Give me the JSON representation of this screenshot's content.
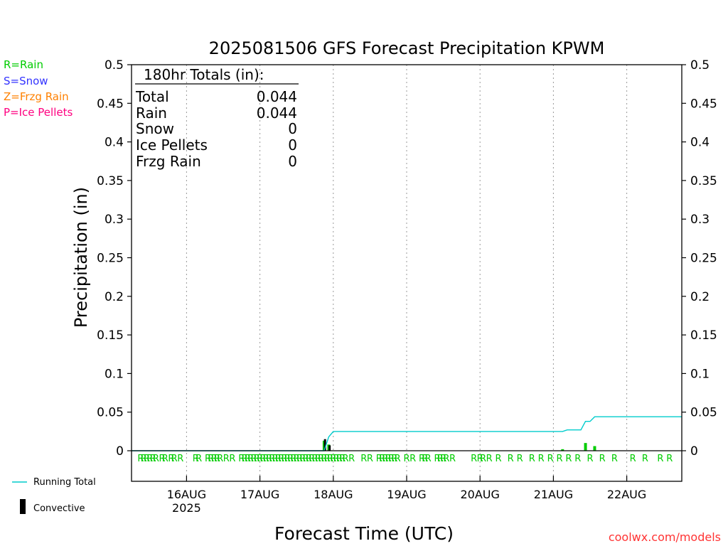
{
  "chart_data": {
    "type": "bar",
    "title": "2025081506 GFS Forecast Precipitation KPWM",
    "xlabel": "Forecast Time (UTC)",
    "ylabel": "Precipitation (in)",
    "ylim": [
      0,
      0.5
    ],
    "xlim_hours": [
      0,
      180
    ],
    "yticks": [
      "0",
      "0.05",
      "0.1",
      "0.15",
      "0.2",
      "0.25",
      "0.3",
      "0.35",
      "0.4",
      "0.45",
      "0.5"
    ],
    "xticks": [
      {
        "hour": 18,
        "label": "16AUG",
        "sublabel": "2025"
      },
      {
        "hour": 42,
        "label": "17AUG",
        "sublabel": ""
      },
      {
        "hour": 66,
        "label": "18AUG",
        "sublabel": ""
      },
      {
        "hour": 90,
        "label": "19AUG",
        "sublabel": ""
      },
      {
        "hour": 114,
        "label": "20AUG",
        "sublabel": ""
      },
      {
        "hour": 138,
        "label": "21AUG",
        "sublabel": ""
      },
      {
        "hour": 162,
        "label": "22AUG",
        "sublabel": ""
      }
    ],
    "grid": true,
    "legend": {
      "types": [
        {
          "text": "R=Rain",
          "color": "#00cc00"
        },
        {
          "text": "S=Snow",
          "color": "#3333ff"
        },
        {
          "text": "Z=Frzg Rain",
          "color": "#ff8000"
        },
        {
          "text": "P=Ice Pellets",
          "color": "#ff0080"
        }
      ],
      "running_total_label": "Running Total",
      "convective_label": "Convective"
    },
    "totals_box": {
      "heading": "180hr Totals (in):",
      "rows": [
        {
          "label": "Total",
          "value": "0.044"
        },
        {
          "label": "Rain",
          "value": "0.044"
        },
        {
          "label": "Snow",
          "value": "0"
        },
        {
          "label": "Ice Pellets",
          "value": "0"
        },
        {
          "label": "Frzg Rain",
          "value": "0"
        }
      ]
    },
    "series": [
      {
        "name": "Running Total",
        "color": "#00cccc",
        "points": [
          [
            0,
            0
          ],
          [
            63,
            0
          ],
          [
            64.5,
            0.018
          ],
          [
            66,
            0.025
          ],
          [
            141,
            0.025
          ],
          [
            142.5,
            0.027
          ],
          [
            147,
            0.027
          ],
          [
            148.5,
            0.038
          ],
          [
            150,
            0.038
          ],
          [
            151.5,
            0.044
          ],
          [
            180,
            0.044
          ]
        ]
      }
    ],
    "bars": [
      {
        "hour": 63,
        "value": 0.013,
        "color": "#00cc00"
      },
      {
        "hour": 64.5,
        "value": 0.008,
        "color": "#00cc00"
      },
      {
        "hour": 141,
        "value": 0.002,
        "color": "#00cc00"
      },
      {
        "hour": 148.5,
        "value": 0.01,
        "color": "#00cc00"
      },
      {
        "hour": 151.5,
        "value": 0.006,
        "color": "#00cc00"
      }
    ],
    "convective_bars": [
      {
        "hour": 63.3,
        "value": 0.015
      },
      {
        "hour": 64.8,
        "value": 0.007
      }
    ],
    "precip_type_markers": {
      "color": "#00cc00",
      "letter": "R",
      "hours": [
        3,
        4,
        5,
        6,
        7,
        8,
        10,
        11,
        13,
        14,
        16,
        21,
        22,
        25,
        26,
        27,
        28,
        29,
        31,
        33,
        36,
        37,
        38,
        39,
        40,
        41,
        42,
        43,
        44,
        45,
        46,
        47,
        48,
        49,
        50,
        51,
        52,
        53,
        54,
        55,
        56,
        57,
        58,
        59,
        60,
        61,
        62,
        63,
        64,
        65,
        66,
        67,
        68,
        69,
        70,
        72,
        76,
        78,
        81,
        82,
        83,
        84,
        85,
        86,
        87,
        90,
        92,
        95,
        96,
        97,
        100,
        101,
        102,
        103,
        105,
        112,
        114,
        115,
        117,
        120,
        124,
        127,
        131,
        134,
        137,
        140,
        143,
        146,
        150,
        154,
        158,
        164,
        168,
        173,
        176
      ]
    }
  },
  "footer": {
    "credit": "coolwx.com/models"
  }
}
